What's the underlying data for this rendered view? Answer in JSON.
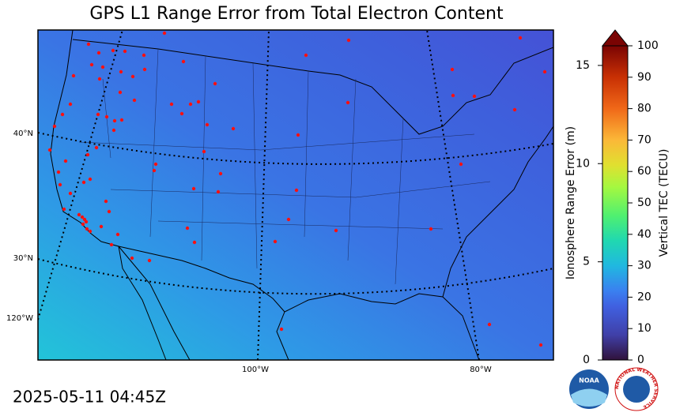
{
  "title": "GPS L1 Range Error from Total Electron Content",
  "map": {
    "lat_labels": [
      "40°N",
      "30°N"
    ],
    "lon_labels": [
      "120°W",
      "100°W",
      "80°W"
    ]
  },
  "colorbar": {
    "left_label": "Ionosphere Range Error (m)",
    "left_lim": [
      0,
      16
    ],
    "left_ticks": [
      0,
      5,
      10,
      15
    ],
    "right_label": "Vertical TEC (TECU)",
    "right_lim": [
      0,
      100
    ],
    "right_ticks": [
      0,
      10,
      20,
      30,
      40,
      50,
      60,
      70,
      80,
      90,
      100
    ]
  },
  "timestamp": "2025-05-11 04:45Z",
  "logos": {
    "noaa": "NOAA",
    "nws": "NATIONAL WEATHER SERVICE"
  }
}
